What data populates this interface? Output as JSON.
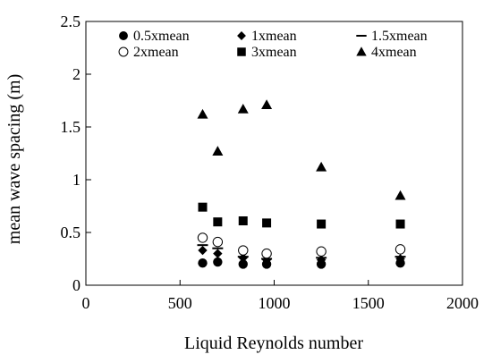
{
  "chart_data": {
    "type": "scatter",
    "title": "",
    "xlabel": "Liquid Reynolds number",
    "ylabel": "mean wave spacing (m)",
    "xlim": [
      0,
      2000
    ],
    "ylim": [
      0,
      2.5
    ],
    "xticks": [
      0,
      500,
      1000,
      1500,
      2000
    ],
    "yticks": [
      0,
      0.5,
      1,
      1.5,
      2,
      2.5
    ],
    "xtick_labels": [
      "0",
      "500",
      "1000",
      "1500",
      "2000"
    ],
    "ytick_labels": [
      "0",
      "0.5",
      "1",
      "1.5",
      "2",
      "2.5"
    ],
    "grid": false,
    "legend_position": "top",
    "series": [
      {
        "name": "0.5xmean",
        "marker": "filled-circle",
        "color": "#000000",
        "x": [
          620,
          700,
          835,
          960,
          1250,
          1670
        ],
        "y": [
          0.21,
          0.22,
          0.2,
          0.2,
          0.2,
          0.21
        ]
      },
      {
        "name": "1xmean",
        "marker": "filled-diamond",
        "color": "#000000",
        "x": [
          620,
          700,
          835,
          960,
          1250,
          1670
        ],
        "y": [
          0.33,
          0.3,
          0.26,
          0.24,
          0.24,
          0.25
        ]
      },
      {
        "name": "1.5xmean",
        "marker": "dash",
        "color": "#000000",
        "x": [
          620,
          700,
          835,
          960,
          1250,
          1670
        ],
        "y": [
          0.38,
          0.35,
          0.27,
          0.25,
          0.26,
          0.27
        ]
      },
      {
        "name": "2xmean",
        "marker": "open-circle",
        "color": "#000000",
        "x": [
          620,
          700,
          835,
          960,
          1250,
          1670
        ],
        "y": [
          0.45,
          0.41,
          0.33,
          0.3,
          0.32,
          0.34
        ]
      },
      {
        "name": "3xmean",
        "marker": "filled-square",
        "color": "#000000",
        "x": [
          620,
          700,
          835,
          960,
          1250,
          1670
        ],
        "y": [
          0.74,
          0.6,
          0.61,
          0.59,
          0.58,
          0.58
        ]
      },
      {
        "name": "4xmean",
        "marker": "filled-triangle",
        "color": "#000000",
        "x": [
          620,
          700,
          835,
          960,
          1250,
          1670
        ],
        "y": [
          1.62,
          1.27,
          1.67,
          1.71,
          1.12,
          0.85
        ]
      }
    ]
  }
}
